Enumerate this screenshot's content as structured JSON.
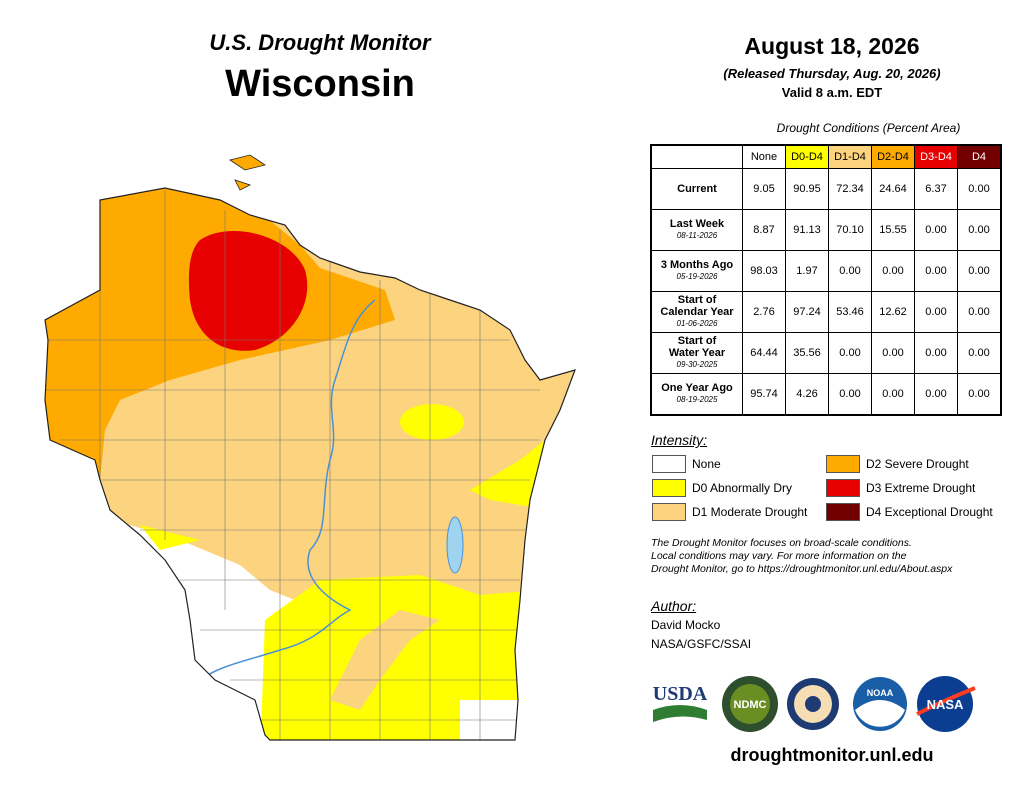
{
  "header": {
    "title": "U.S. Drought Monitor",
    "state": "Wisconsin"
  },
  "date": {
    "map_date": "August 18, 2026",
    "released": "(Released Thursday, Aug. 20, 2026)",
    "valid": "Valid 8 a.m. EDT"
  },
  "table": {
    "caption": "Drought Conditions (Percent Area)",
    "columns": [
      {
        "label": "None",
        "color": "#ffffff",
        "text_color": "#000000"
      },
      {
        "label": "D0-D4",
        "color": "#ffff00",
        "text_color": "#000000"
      },
      {
        "label": "D1-D4",
        "color": "#fcd37f",
        "text_color": "#000000"
      },
      {
        "label": "D2-D4",
        "color": "#ffaa00",
        "text_color": "#000000"
      },
      {
        "label": "D3-D4",
        "color": "#e60000",
        "text_color": "#ffffff"
      },
      {
        "label": "D4",
        "color": "#730000",
        "text_color": "#ffffff"
      }
    ],
    "rows": [
      {
        "label": [
          "Current"
        ],
        "values": [
          "9.05",
          "90.95",
          "72.34",
          "24.64",
          "6.37",
          "0.00"
        ]
      },
      {
        "label": [
          "Last Week"
        ],
        "date": "08-11-2026",
        "values": [
          "8.87",
          "91.13",
          "70.10",
          "15.55",
          "0.00",
          "0.00"
        ]
      },
      {
        "label": [
          "3 Months Ago"
        ],
        "date": "05-19-2026",
        "values": [
          "98.03",
          "1.97",
          "0.00",
          "0.00",
          "0.00",
          "0.00"
        ]
      },
      {
        "label": [
          "Start of",
          "Calendar Year"
        ],
        "date": "01-06-2026",
        "values": [
          "2.76",
          "97.24",
          "53.46",
          "12.62",
          "0.00",
          "0.00"
        ]
      },
      {
        "label": [
          "Start of",
          "Water Year"
        ],
        "date": "09-30-2025",
        "values": [
          "64.44",
          "35.56",
          "0.00",
          "0.00",
          "0.00",
          "0.00"
        ]
      },
      {
        "label": [
          "One Year Ago"
        ],
        "date": "08-19-2025",
        "values": [
          "95.74",
          "4.26",
          "0.00",
          "0.00",
          "0.00",
          "0.00"
        ]
      }
    ]
  },
  "legend": {
    "title": "Intensity:",
    "items": [
      {
        "label": "None",
        "color": "#ffffff"
      },
      {
        "label": "D0 Abnormally Dry",
        "color": "#ffff00"
      },
      {
        "label": "D1 Moderate Drought",
        "color": "#fcd37f"
      },
      {
        "label": "D2 Severe Drought",
        "color": "#ffaa00"
      },
      {
        "label": "D3 Extreme Drought",
        "color": "#e60000"
      },
      {
        "label": "D4 Exceptional Drought",
        "color": "#730000"
      }
    ]
  },
  "note": [
    "The Drought Monitor focuses on broad-scale conditions.",
    "Local conditions may vary. For more information on the",
    "Drought Monitor, go to https://droughtmonitor.unl.edu/About.aspx"
  ],
  "author": {
    "title": "Author:",
    "name": "David Mocko",
    "org": "NASA/GSFC/SSAI"
  },
  "logos": [
    "USDA",
    "NDMC",
    "NOAA",
    "NASA"
  ],
  "url": "droughtmonitor.unl.edu"
}
